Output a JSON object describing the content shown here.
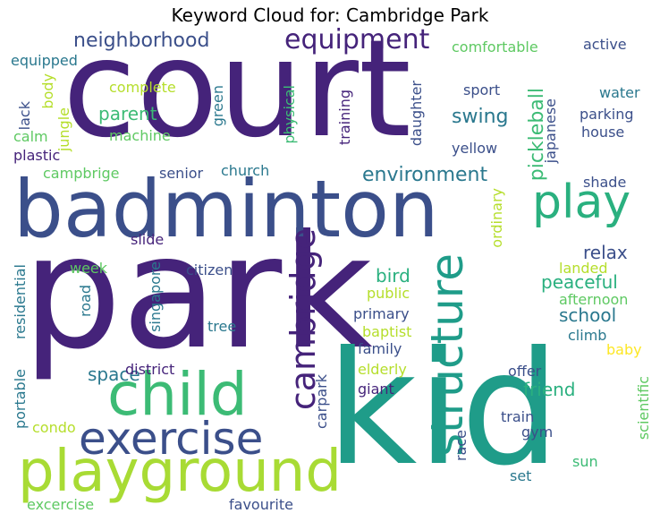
{
  "title": "Keyword Cloud for: Cambridge Park",
  "words": [
    {
      "text": "park",
      "color": "#45237a"
    },
    {
      "text": "court",
      "color": "#45237a"
    },
    {
      "text": "kid",
      "color": "#1f9c89"
    },
    {
      "text": "badminton",
      "color": "#3b4f8a"
    },
    {
      "text": "playground",
      "color": "#a8db34"
    },
    {
      "text": "child",
      "color": "#3cbb75"
    },
    {
      "text": "exercise",
      "color": "#3b4f8a"
    },
    {
      "text": "structure",
      "color": "#1f9c89"
    },
    {
      "text": "cambridge",
      "color": "#45237a"
    },
    {
      "text": "play",
      "color": "#2ab07f"
    },
    {
      "text": "equipment",
      "color": "#45237a"
    },
    {
      "text": "neighborhood",
      "color": "#3b4f8a"
    },
    {
      "text": "environment",
      "color": "#2a788e"
    },
    {
      "text": "pickleball",
      "color": "#3cbb75"
    },
    {
      "text": "swing",
      "color": "#2a788e"
    },
    {
      "text": "parent",
      "color": "#3cbb75"
    },
    {
      "text": "relax",
      "color": "#3b4f8a"
    },
    {
      "text": "peaceful",
      "color": "#2ab07f"
    },
    {
      "text": "school",
      "color": "#2a788e"
    },
    {
      "text": "bird",
      "color": "#2ab07f"
    },
    {
      "text": "friend",
      "color": "#2ab07f"
    },
    {
      "text": "space",
      "color": "#2a788e"
    },
    {
      "text": "comfortable",
      "color": "#5ec962"
    },
    {
      "text": "active",
      "color": "#3b4f8a"
    },
    {
      "text": "equipped",
      "color": "#2a788e"
    },
    {
      "text": "lack",
      "color": "#3b4f8a"
    },
    {
      "text": "body",
      "color": "#b5de2b"
    },
    {
      "text": "jungle",
      "color": "#b5de2b"
    },
    {
      "text": "complete",
      "color": "#b5de2b"
    },
    {
      "text": "green",
      "color": "#2a788e"
    },
    {
      "text": "physical",
      "color": "#3cbb75"
    },
    {
      "text": "training",
      "color": "#45237a"
    },
    {
      "text": "daughter",
      "color": "#3b4f8a"
    },
    {
      "text": "sport",
      "color": "#3b4f8a"
    },
    {
      "text": "water",
      "color": "#2a788e"
    },
    {
      "text": "parking",
      "color": "#3b4f8a"
    },
    {
      "text": "house",
      "color": "#3b4f8a"
    },
    {
      "text": "yellow",
      "color": "#3b4f8a"
    },
    {
      "text": "japanese",
      "color": "#3b4f8a"
    },
    {
      "text": "calm",
      "color": "#5ec962"
    },
    {
      "text": "machine",
      "color": "#5ec962"
    },
    {
      "text": "plastic",
      "color": "#45237a"
    },
    {
      "text": "campbrige",
      "color": "#5ec962"
    },
    {
      "text": "senior",
      "color": "#3b4f8a"
    },
    {
      "text": "church",
      "color": "#2a788e"
    },
    {
      "text": "shade",
      "color": "#3b4f8a"
    },
    {
      "text": "ordinary",
      "color": "#b5de2b"
    },
    {
      "text": "slide",
      "color": "#45237a"
    },
    {
      "text": "week",
      "color": "#5ec962"
    },
    {
      "text": "citizen",
      "color": "#3b4f8a"
    },
    {
      "text": "road",
      "color": "#2a788e"
    },
    {
      "text": "singapore",
      "color": "#2a788e"
    },
    {
      "text": "landed",
      "color": "#b5de2b"
    },
    {
      "text": "afternoon",
      "color": "#5ec962"
    },
    {
      "text": "public",
      "color": "#b5de2b"
    },
    {
      "text": "primary",
      "color": "#3b4f8a"
    },
    {
      "text": "baptist",
      "color": "#b5de2b"
    },
    {
      "text": "climb",
      "color": "#2a788e"
    },
    {
      "text": "residential",
      "color": "#2a788e"
    },
    {
      "text": "tree",
      "color": "#2a788e"
    },
    {
      "text": "family",
      "color": "#3b4f8a"
    },
    {
      "text": "baby",
      "color": "#fde725"
    },
    {
      "text": "district",
      "color": "#45237a"
    },
    {
      "text": "elderly",
      "color": "#b5de2b"
    },
    {
      "text": "offer",
      "color": "#3b4f8a"
    },
    {
      "text": "giant",
      "color": "#45237a"
    },
    {
      "text": "portable",
      "color": "#2a788e"
    },
    {
      "text": "carpark",
      "color": "#3b4f8a"
    },
    {
      "text": "condo",
      "color": "#b5de2b"
    },
    {
      "text": "train",
      "color": "#3b4f8a"
    },
    {
      "text": "gym",
      "color": "#3b4f8a"
    },
    {
      "text": "race",
      "color": "#3b4f8a"
    },
    {
      "text": "scientific",
      "color": "#5ec962"
    },
    {
      "text": "sun",
      "color": "#3cbb75"
    },
    {
      "text": "set",
      "color": "#2a788e"
    },
    {
      "text": "excercise",
      "color": "#5ec962"
    },
    {
      "text": "favourite",
      "color": "#3b4f8a"
    }
  ]
}
